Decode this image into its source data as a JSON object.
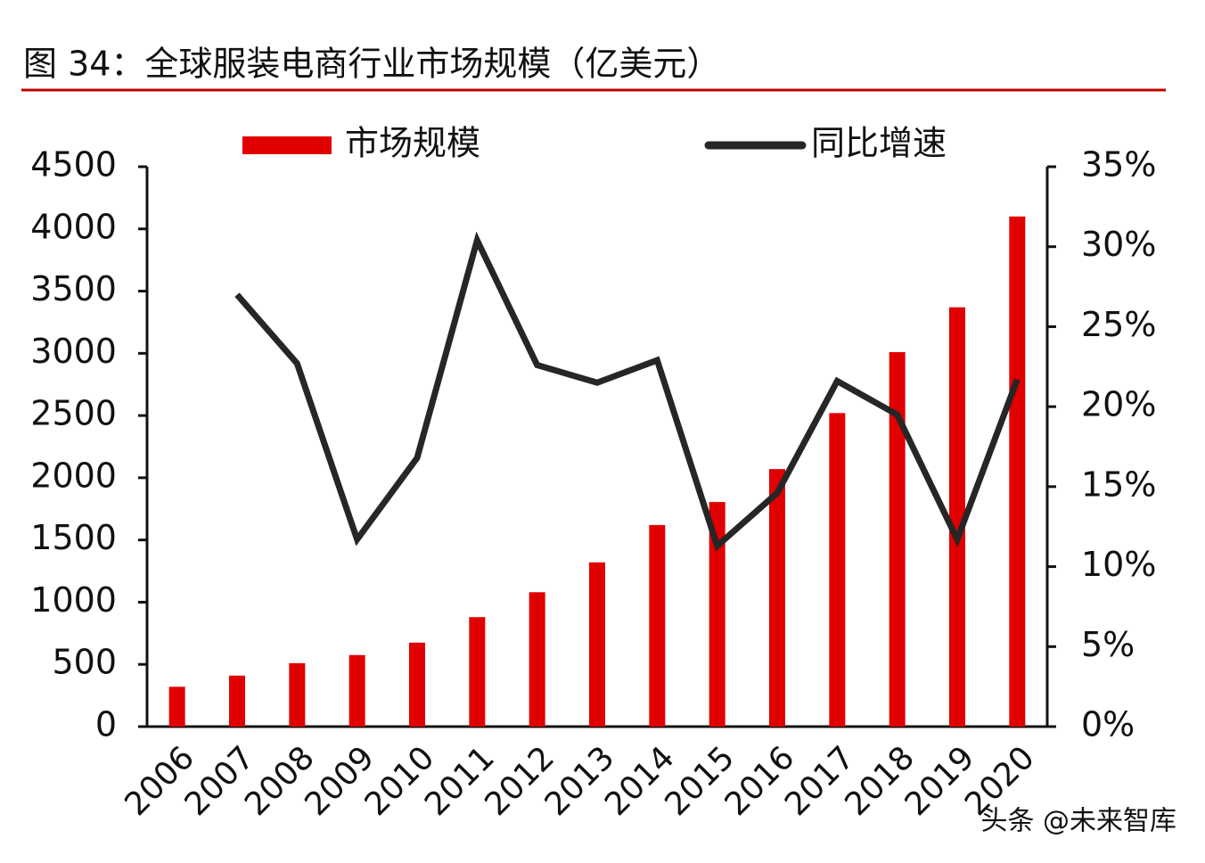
{
  "chart_data": {
    "type": "bar-line",
    "title": "图 34：全球服装电商行业市场规模（亿美元）",
    "watermark": "头条 @未来智库",
    "categories": [
      "2006",
      "2007",
      "2008",
      "2009",
      "2010",
      "2011",
      "2012",
      "2013",
      "2014",
      "2015",
      "2016",
      "2017",
      "2018",
      "2019",
      "2020"
    ],
    "series": [
      {
        "name": "市场规模",
        "type": "bar",
        "color": "#e00000",
        "values": [
          320,
          410,
          510,
          575,
          675,
          880,
          1080,
          1320,
          1620,
          1805,
          2070,
          2520,
          3010,
          3370,
          4100
        ]
      },
      {
        "name": "同比增速",
        "type": "line",
        "axis": "y2",
        "color": "#262626",
        "values": [
          null,
          27.0,
          22.7,
          11.7,
          16.8,
          30.4,
          22.6,
          21.5,
          22.9,
          11.3,
          14.6,
          21.6,
          19.5,
          11.7,
          21.7
        ]
      }
    ],
    "ylim": [
      0,
      4500
    ],
    "yticks": [
      0,
      500,
      1000,
      1500,
      2000,
      2500,
      3000,
      3500,
      4000,
      4500
    ],
    "y2lim": [
      0,
      35
    ],
    "y2ticks": [
      {
        "value": 0,
        "label": "0%"
      },
      {
        "value": 5,
        "label": "5%"
      },
      {
        "value": 10,
        "label": "10%"
      },
      {
        "value": 15,
        "label": "15%"
      },
      {
        "value": 20,
        "label": "20%"
      },
      {
        "value": 25,
        "label": "25%"
      },
      {
        "value": 30,
        "label": "30%"
      },
      {
        "value": 35,
        "label": "35%"
      }
    ],
    "legend": "top"
  }
}
